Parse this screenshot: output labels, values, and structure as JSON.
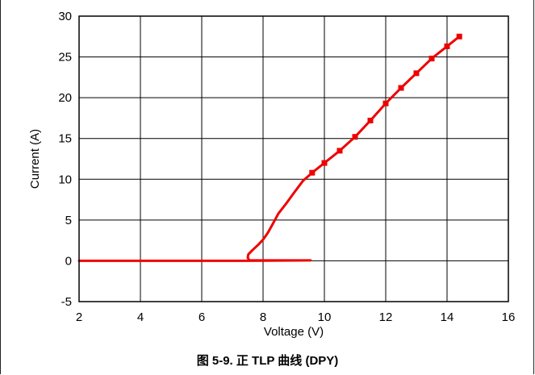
{
  "figure": {
    "caption": "图 5-9. 正 TLP 曲线 (DPY)"
  },
  "chart_data": {
    "type": "line",
    "title": "",
    "xlabel": "Voltage (V)",
    "ylabel": "Current (A)",
    "xlim": [
      2,
      16
    ],
    "ylim": [
      -5,
      30
    ],
    "xticks": [
      "2",
      "4",
      "6",
      "8",
      "10",
      "12",
      "14",
      "16"
    ],
    "yticks": [
      "-5",
      "0",
      "5",
      "10",
      "15",
      "20",
      "25",
      "30"
    ],
    "grid": true,
    "series": [
      {
        "color": "#ee0000",
        "points": [
          [
            2.0,
            0.0
          ],
          [
            4.0,
            0.0
          ],
          [
            6.0,
            0.0
          ],
          [
            7.0,
            0.0
          ],
          [
            7.4,
            0.0
          ],
          [
            9.55,
            0.05
          ],
          [
            7.55,
            0.05
          ],
          [
            7.5,
            0.4
          ],
          [
            7.52,
            0.8
          ],
          [
            7.65,
            1.3
          ],
          [
            7.85,
            2.0
          ],
          [
            8.0,
            2.6
          ],
          [
            8.15,
            3.4
          ],
          [
            8.3,
            4.4
          ],
          [
            8.5,
            5.8
          ],
          [
            8.75,
            7.0
          ],
          [
            9.0,
            8.3
          ],
          [
            9.3,
            9.8
          ],
          [
            9.6,
            10.8
          ],
          [
            10.0,
            12.0
          ],
          [
            10.5,
            13.5
          ],
          [
            11.0,
            15.2
          ],
          [
            11.5,
            17.2
          ],
          [
            12.0,
            19.3
          ],
          [
            12.5,
            21.2
          ],
          [
            13.0,
            23.0
          ],
          [
            13.5,
            24.8
          ],
          [
            14.0,
            26.3
          ],
          [
            14.4,
            27.5
          ]
        ]
      }
    ]
  }
}
